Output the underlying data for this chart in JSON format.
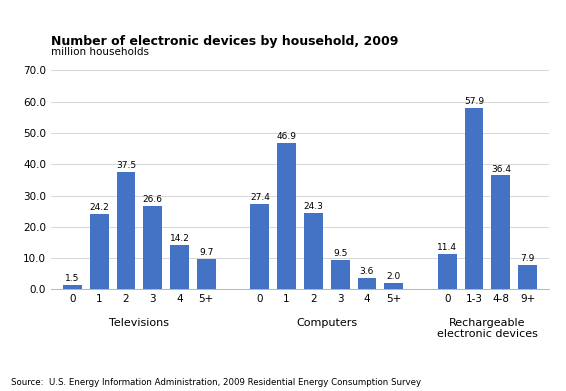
{
  "title": "Number of electronic devices by household, 2009",
  "subtitle": "million households",
  "bar_color": "#4472C4",
  "background_color": "#ffffff",
  "ylim": [
    0,
    70.0
  ],
  "source": "Source:  U.S. Energy Information Administration, 2009 Residential Energy Consumption Survey",
  "groups": [
    {
      "label": "Televisions",
      "bars": [
        {
          "tick": "0",
          "value": 1.5
        },
        {
          "tick": "1",
          "value": 24.2
        },
        {
          "tick": "2",
          "value": 37.5
        },
        {
          "tick": "3",
          "value": 26.6
        },
        {
          "tick": "4",
          "value": 14.2
        },
        {
          "tick": "5+",
          "value": 9.7
        }
      ]
    },
    {
      "label": "Computers",
      "bars": [
        {
          "tick": "0",
          "value": 27.4
        },
        {
          "tick": "1",
          "value": 46.9
        },
        {
          "tick": "2",
          "value": 24.3
        },
        {
          "tick": "3",
          "value": 9.5
        },
        {
          "tick": "4",
          "value": 3.6
        },
        {
          "tick": "5+",
          "value": 2.0
        }
      ]
    },
    {
      "label": "Rechargeable\nelectronic devices",
      "bars": [
        {
          "tick": "0",
          "value": 11.4
        },
        {
          "tick": "1-3",
          "value": 57.9
        },
        {
          "tick": "4-8",
          "value": 36.4
        },
        {
          "tick": "9+",
          "value": 7.9
        }
      ]
    }
  ]
}
